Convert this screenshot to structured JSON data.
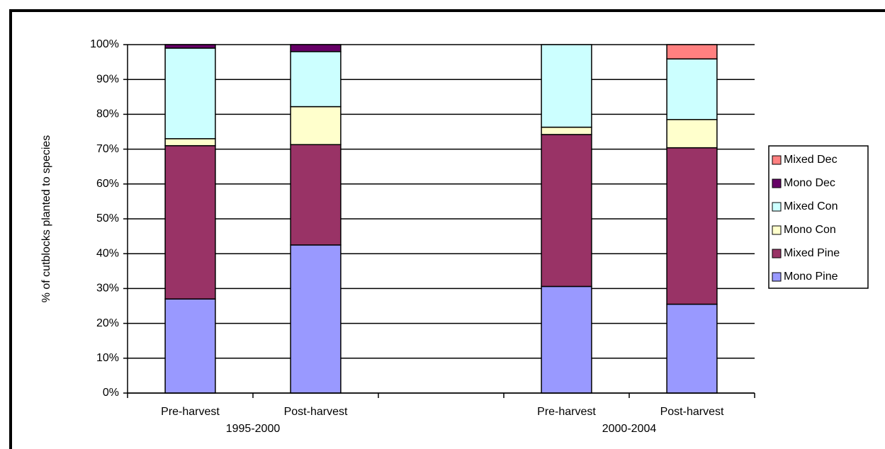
{
  "chart_data": {
    "type": "stacked_bar",
    "ylabel": "% of cutblocks planted to species",
    "categories": [
      "Pre-harvest",
      "Post-harvest",
      null,
      "Pre-harvest",
      "Post-harvest"
    ],
    "groups": [
      {
        "label": "1995-2000",
        "start": 0,
        "end": 1
      },
      {
        "label": "2000-2004",
        "start": 3,
        "end": 4
      }
    ],
    "series": [
      {
        "name": "Mono Pine",
        "color": "#9999ff",
        "values": [
          27,
          42.5,
          null,
          30.6,
          25.5
        ]
      },
      {
        "name": "Mixed Pine",
        "color": "#993366",
        "values": [
          44,
          28.8,
          null,
          43.6,
          44.9
        ]
      },
      {
        "name": "Mono Con",
        "color": "#ffffcc",
        "values": [
          2,
          10.9,
          null,
          2.1,
          8.1
        ]
      },
      {
        "name": "Mixed Con",
        "color": "#ccffff",
        "values": [
          26,
          15.8,
          null,
          23.7,
          17.4
        ]
      },
      {
        "name": "Mono Dec",
        "color": "#660066",
        "values": [
          1,
          2,
          null,
          0,
          0
        ]
      },
      {
        "name": "Mixed Dec",
        "color": "#ff8080",
        "values": [
          0,
          0,
          null,
          0,
          4.1
        ]
      }
    ],
    "ylim": [
      0,
      100
    ],
    "yticks": [
      {
        "value": 0,
        "label": "0%"
      },
      {
        "value": 10,
        "label": "10%"
      },
      {
        "value": 20,
        "label": "20%"
      },
      {
        "value": 30,
        "label": "30%"
      },
      {
        "value": 40,
        "label": "40%"
      },
      {
        "value": 50,
        "label": "50%"
      },
      {
        "value": 60,
        "label": "60%"
      },
      {
        "value": 70,
        "label": "70%"
      },
      {
        "value": 80,
        "label": "80%"
      },
      {
        "value": 90,
        "label": "90%"
      },
      {
        "value": 100,
        "label": "100%"
      }
    ],
    "grid": true,
    "legend": "right"
  }
}
